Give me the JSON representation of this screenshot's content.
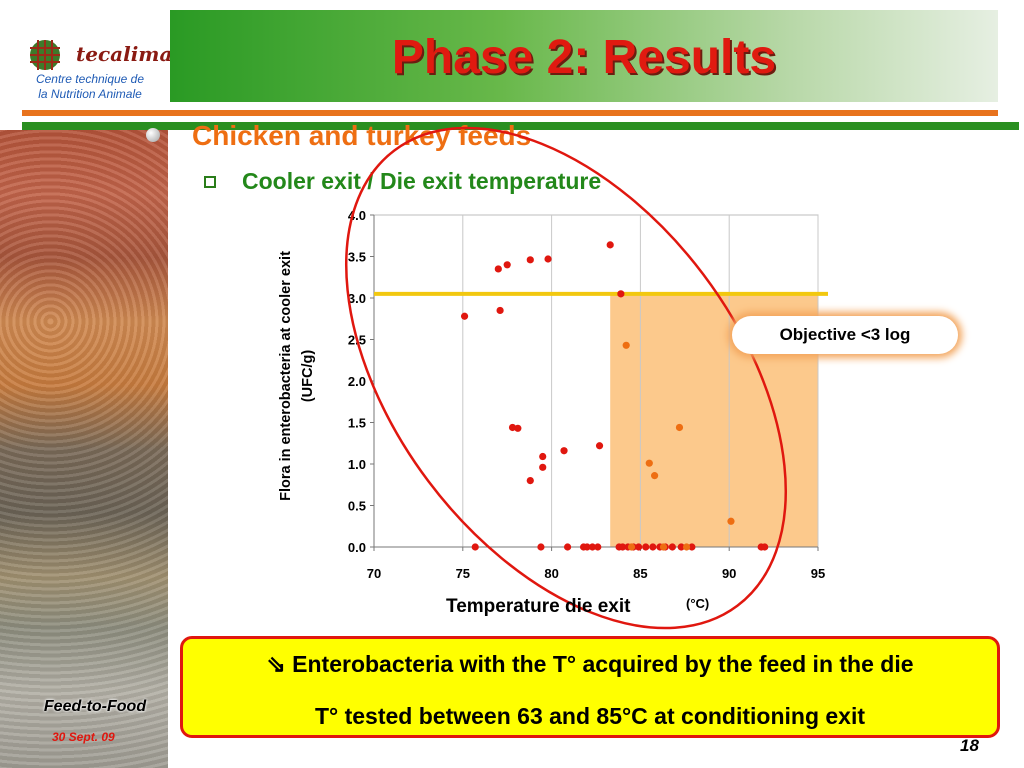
{
  "logo": {
    "brand": "tecaliman",
    "subtitle_line1": "Centre technique de",
    "subtitle_line2": "la Nutrition Animale"
  },
  "slide": {
    "title": "Phase 2: Results",
    "bullet1": "Chicken and turkey feeds",
    "bullet2": "Cooler exit / Die exit temperature",
    "objective_label": "Objective <3 log",
    "note_line1": "⇘ Enterobacteria with the T° acquired by the feed in the die",
    "note_line2": "T° tested between 63 and 85°C at conditioning exit",
    "footer_brand": "Feed-to-Food",
    "footer_date": "30 Sept. 09",
    "page_number": "18"
  },
  "colors": {
    "title": "#e01a10",
    "bullet1": "#ee6e12",
    "bullet2": "#23881a",
    "point_red": "#e0170f",
    "point_orange": "#ee6e12",
    "objective_line": "#f2c80f",
    "shade": "#fcc98c",
    "ellipse": "#e0170f"
  },
  "chart_data": {
    "type": "scatter",
    "xlabel": "Temperature die exit",
    "xlabel_unit": "(°C)",
    "ylabel_line1": "Flora in enterobacteria at cooler exit",
    "ylabel_line2": "(UFC/g)",
    "xlim": [
      70,
      95
    ],
    "ylim": [
      0,
      4
    ],
    "x_ticks": [
      "70",
      "75",
      "80",
      "85",
      "90",
      "95"
    ],
    "y_ticks": [
      "0.0",
      "0.5",
      "1.0",
      "1.5",
      "2.0",
      "2.5",
      "3.0",
      "3.5",
      "4.0"
    ],
    "grid": "vertical",
    "objective_level": 3.05,
    "shaded_region": {
      "x_from": 83.3,
      "x_to": 95,
      "y_from": 0,
      "y_to": 3.05
    },
    "series": [
      {
        "color": "red",
        "points": [
          [
            75.1,
            2.78
          ],
          [
            75.7,
            0.0
          ],
          [
            77.0,
            3.35
          ],
          [
            77.1,
            2.85
          ],
          [
            77.5,
            3.4
          ],
          [
            77.8,
            1.44
          ],
          [
            78.1,
            1.43
          ],
          [
            78.8,
            3.46
          ],
          [
            78.8,
            0.8
          ],
          [
            79.4,
            0.0
          ],
          [
            79.5,
            0.96
          ],
          [
            79.5,
            1.09
          ],
          [
            79.8,
            3.47
          ],
          [
            80.7,
            1.16
          ],
          [
            80.9,
            0.0
          ],
          [
            81.8,
            0.0
          ],
          [
            82.0,
            0.0
          ],
          [
            82.3,
            0.0
          ],
          [
            82.6,
            0.0
          ],
          [
            82.7,
            1.22
          ],
          [
            83.3,
            3.64
          ],
          [
            83.8,
            0.0
          ],
          [
            84.0,
            0.0
          ],
          [
            83.9,
            3.05
          ],
          [
            84.3,
            0.0
          ],
          [
            84.6,
            0.0
          ],
          [
            84.9,
            0.0
          ],
          [
            85.3,
            0.0
          ],
          [
            85.7,
            0.0
          ],
          [
            86.1,
            0.0
          ],
          [
            86.4,
            0.0
          ],
          [
            86.8,
            0.0
          ],
          [
            87.3,
            0.0
          ],
          [
            87.9,
            0.0
          ],
          [
            91.8,
            0.0
          ],
          [
            92.0,
            0.0
          ]
        ]
      },
      {
        "color": "orange",
        "points": [
          [
            84.2,
            2.43
          ],
          [
            85.5,
            1.01
          ],
          [
            85.8,
            0.86
          ],
          [
            87.2,
            1.44
          ],
          [
            90.1,
            0.31
          ],
          [
            84.5,
            0.0
          ],
          [
            86.3,
            0.0
          ],
          [
            87.6,
            0.0
          ]
        ]
      }
    ]
  }
}
